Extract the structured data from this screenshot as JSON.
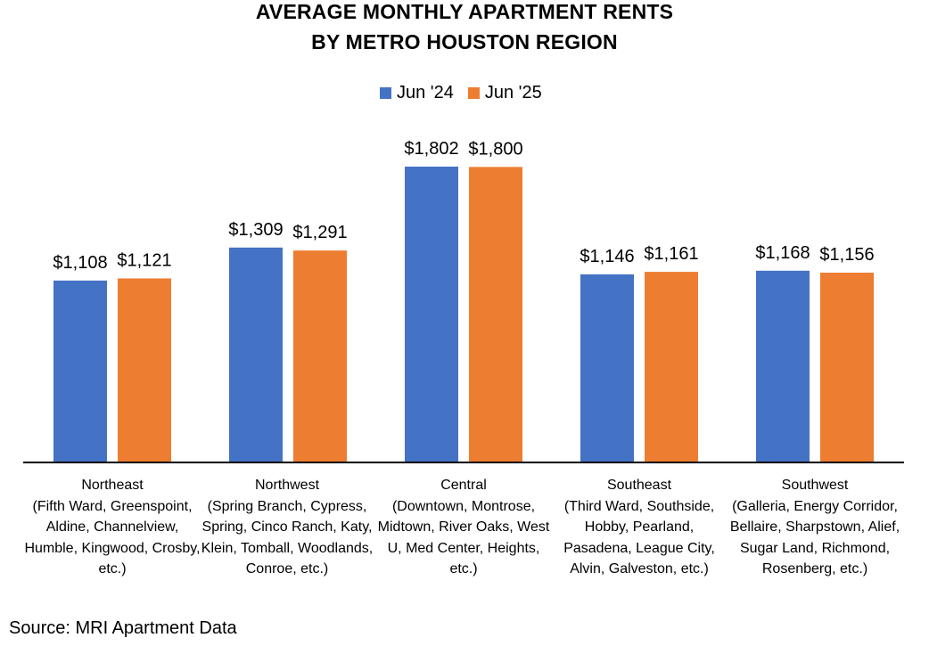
{
  "chart_data": {
    "type": "bar",
    "title_line1": "AVERAGE MONTHLY APARTMENT RENTS",
    "title_line2": "BY METRO HOUSTON REGION",
    "categories": [
      {
        "name": "Northeast",
        "detail": "(Fifth Ward, Greenspoint, Aldine, Channelview, Humble, Kingwood, Crosby, etc.)"
      },
      {
        "name": "Northwest",
        "detail": "(Spring Branch, Cypress, Spring, Cinco Ranch, Katy, Klein, Tomball, Woodlands, Conroe, etc.)"
      },
      {
        "name": "Central",
        "detail": "(Downtown, Montrose, Midtown, River Oaks, West U, Med Center, Heights, etc.)"
      },
      {
        "name": "Southeast",
        "detail": "(Third Ward, Southside, Hobby, Pearland, Pasadena, League City, Alvin, Galveston, etc.)"
      },
      {
        "name": "Southwest",
        "detail": "(Galleria, Energy Corridor, Bellaire, Sharpstown, Alief, Sugar Land, Richmond, Rosenberg, etc.)"
      }
    ],
    "series": [
      {
        "name": "Jun '24",
        "color": "#4472C4",
        "values": [
          1108,
          1309,
          1802,
          1146,
          1168
        ],
        "labels": [
          "$1,108",
          "$1,309",
          "$1,802",
          "$1,146",
          "$1,168"
        ]
      },
      {
        "name": "Jun '25",
        "color": "#ED7D31",
        "values": [
          1121,
          1291,
          1800,
          1161,
          1156
        ],
        "labels": [
          "$1,121",
          "$1,291",
          "$1,800",
          "$1,161",
          "$1,156"
        ]
      }
    ],
    "ylim": [
      0,
      1802
    ],
    "legend_position": "top-center",
    "grid": false,
    "source": "Source: MRI Apartment Data"
  }
}
